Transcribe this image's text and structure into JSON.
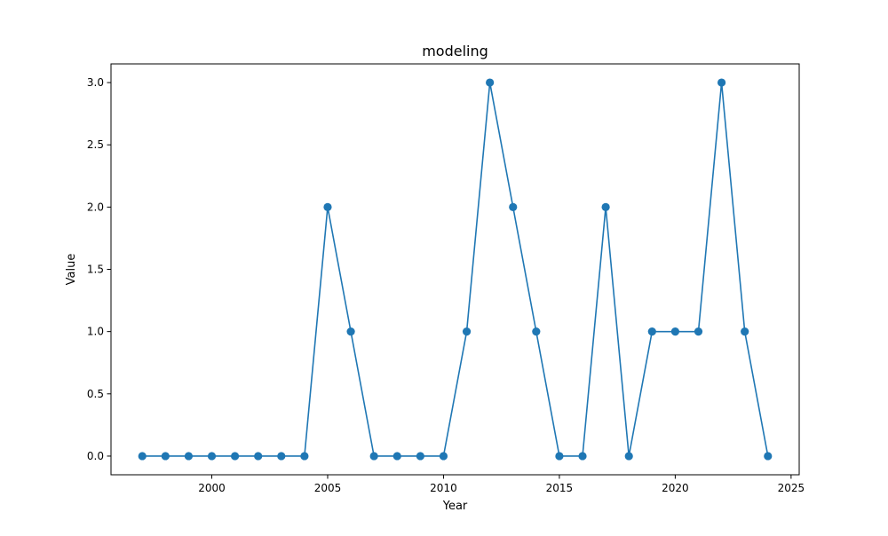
{
  "chart_data": {
    "type": "line",
    "title": "modeling",
    "xlabel": "Year",
    "ylabel": "Value",
    "x": [
      1997,
      1998,
      1999,
      2000,
      2001,
      2002,
      2003,
      2004,
      2005,
      2006,
      2007,
      2008,
      2009,
      2010,
      2011,
      2012,
      2013,
      2014,
      2015,
      2016,
      2017,
      2018,
      2019,
      2020,
      2021,
      2022,
      2023,
      2024
    ],
    "series": [
      {
        "values": [
          0,
          0,
          0,
          0,
          0,
          0,
          0,
          0,
          2,
          1,
          0,
          0,
          0,
          0,
          1,
          3,
          2,
          1,
          0,
          0,
          2,
          0,
          1,
          1,
          1,
          3,
          1,
          0
        ],
        "color": "#1f77b4",
        "marker": "circle"
      }
    ],
    "xlim": [
      1995.65,
      2025.35
    ],
    "ylim": [
      -0.15,
      3.15
    ],
    "xticks": [
      2000,
      2005,
      2010,
      2015,
      2020,
      2025
    ],
    "xtick_labels": [
      "2000",
      "2005",
      "2010",
      "2015",
      "2020",
      "2025"
    ],
    "yticks": [
      0,
      0.5,
      1,
      1.5,
      2,
      2.5,
      3
    ],
    "ytick_labels": [
      "0.0",
      "0.5",
      "1.0",
      "1.5",
      "2.0",
      "2.5",
      "3.0"
    ],
    "grid": false,
    "legend": false
  }
}
